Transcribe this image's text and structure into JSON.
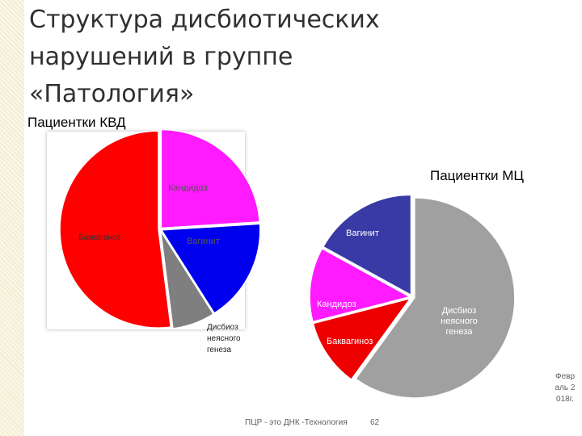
{
  "slide": {
    "title_lines": [
      "Структура дисбиотических",
      "нарушений в группе",
      "«Патология»"
    ],
    "footer_text": "ПЦР - это ДНК -Технология",
    "page_number": "62",
    "date_text": "Февраль 2018г."
  },
  "colors": {
    "red": "#ff0000",
    "magenta": "#ff1aff",
    "blue": "#0000ee",
    "gray": "#7f7f7f",
    "navy": "#3a3aa6",
    "light_gray": "#a0a0a0"
  },
  "chart_data": [
    {
      "type": "pie",
      "title": "Пациентки КВД",
      "slices": [
        {
          "label": "Кандидоз",
          "value": 24,
          "color": "#ff1aff"
        },
        {
          "label": "Вагинит",
          "value": 17,
          "color": "#0000ee"
        },
        {
          "label": "Дисбиоз неясного генеза",
          "value": 7,
          "color": "#7f7f7f"
        },
        {
          "label": "Бакваганоз",
          "value": 52,
          "color": "#ff0000"
        }
      ]
    },
    {
      "type": "pie",
      "title": "Пациентки МЦ",
      "slices": [
        {
          "label": "Дисбиоз неясного генеза",
          "value": 60,
          "color": "#a0a0a0"
        },
        {
          "label": "Баквагиноз",
          "value": 11,
          "color": "#ee0000"
        },
        {
          "label": "Кандидоз",
          "value": 12,
          "color": "#ff1aff"
        },
        {
          "label": "Вагинит",
          "value": 17,
          "color": "#3a3aa6"
        }
      ]
    }
  ]
}
